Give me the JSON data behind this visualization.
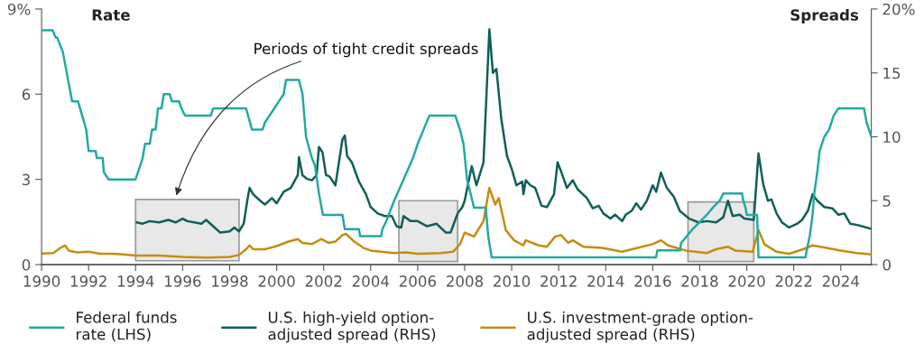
{
  "chart_data": {
    "type": "line",
    "ylabel": "Rate",
    "y2label": "Spreads",
    "xlim": [
      1990,
      2025.3
    ],
    "xticks": [
      1990,
      1992,
      1994,
      1996,
      1998,
      2000,
      2002,
      2004,
      2006,
      2008,
      2010,
      2012,
      2014,
      2016,
      2018,
      2020,
      2022,
      2024
    ],
    "ylim": [
      0,
      9
    ],
    "yticks": [
      0,
      3,
      6,
      {
        "value": 9,
        "label": "9%"
      }
    ],
    "y2lim": [
      0,
      20
    ],
    "y2ticks": [
      0,
      5,
      10,
      15,
      {
        "value": 20,
        "label": "20%"
      }
    ],
    "grid": false,
    "legend": "bottom",
    "marker": "none",
    "line_style": "solid",
    "bands": [
      {
        "axis": "x",
        "from": 1994.0,
        "to": 1998.4,
        "color": "#e8e8e8"
      },
      {
        "axis": "x",
        "from": 2005.2,
        "to": 2007.7,
        "color": "#e8e8e8"
      },
      {
        "axis": "x",
        "from": 2017.5,
        "to": 2020.3,
        "color": "#e8e8e8"
      }
    ],
    "annotations": [
      {
        "text": "Periods of tight credit spreads",
        "x": 1995.7,
        "y": 2.35
      }
    ],
    "series": [
      {
        "name": "Federal funds\nrate (LHS)",
        "color": "#22aaa1",
        "axis": "y",
        "x": [
          1990.0,
          1990.47,
          1990.6,
          1990.66,
          1990.9,
          1991.3,
          1991.55,
          1991.9,
          1992.0,
          1992.3,
          1992.35,
          1992.6,
          1992.65,
          1992.85,
          1994.0,
          1994.1,
          1994.3,
          1994.4,
          1994.6,
          1994.7,
          1994.85,
          1994.95,
          1995.1,
          1995.2,
          1995.45,
          1995.55,
          1995.85,
          1995.95,
          1996.1,
          1997.2,
          1997.3,
          1998.7,
          1998.95,
          1999.4,
          1999.5,
          1999.7,
          1999.9,
          2000.1,
          2000.3,
          2000.4,
          2000.95,
          2001.1,
          2001.15,
          2001.25,
          2001.5,
          2001.63,
          2001.8,
          2001.97,
          2002.8,
          2002.9,
          2003.5,
          2003.55,
          2004.45,
          2004.5,
          2004.65,
          2005.0,
          2005.4,
          2005.8,
          2006.0,
          2006.25,
          2006.5,
          2007.6,
          2007.7,
          2007.8,
          2007.95,
          2008.1,
          2008.4,
          2008.9,
          2009.0,
          2009.15,
          2016.14,
          2016.2,
          2017.17,
          2017.2,
          2017.45,
          2017.7,
          2018.0,
          2018.3,
          2018.55,
          2018.85,
          2019.0,
          2019.8,
          2019.85,
          2019.95,
          2020.0,
          2020.44,
          2020.5,
          2022.5,
          2022.55,
          2022.68,
          2022.8,
          2022.87,
          2023.0,
          2023.1,
          2023.3,
          2023.5,
          2023.6,
          2023.7,
          2023.9,
          2024.99,
          2025.1,
          2025.2,
          2025.3
        ],
        "values": [
          8.25,
          8.25,
          8.0,
          8.0,
          7.5,
          5.75,
          5.75,
          4.75,
          4.0,
          4.0,
          3.75,
          3.75,
          3.25,
          3.0,
          3.0,
          3.25,
          3.75,
          4.25,
          4.25,
          4.75,
          4.75,
          5.5,
          5.5,
          6.0,
          6.0,
          5.75,
          5.75,
          5.5,
          5.25,
          5.25,
          5.5,
          5.5,
          4.75,
          4.75,
          5.0,
          5.25,
          5.5,
          5.75,
          6.0,
          6.5,
          6.5,
          6.0,
          5.5,
          4.5,
          3.75,
          3.5,
          2.5,
          1.75,
          1.75,
          1.25,
          1.25,
          1.0,
          1.0,
          1.25,
          1.5,
          2.25,
          3.0,
          3.75,
          4.25,
          4.75,
          5.25,
          5.25,
          5.0,
          4.75,
          4.25,
          3.0,
          2.0,
          2.0,
          1.0,
          0.25,
          0.25,
          0.5,
          0.5,
          0.75,
          1.0,
          1.25,
          1.5,
          1.75,
          2.0,
          2.25,
          2.5,
          2.5,
          2.25,
          2.0,
          1.75,
          1.75,
          0.25,
          0.25,
          0.5,
          1.0,
          1.75,
          2.5,
          3.25,
          4.0,
          4.5,
          4.75,
          5.0,
          5.25,
          5.5,
          5.5,
          5.0,
          4.75,
          4.5
        ]
      },
      {
        "name": "U.S. high-yield option-\nadjusted spread (RHS)",
        "color": "#0f5f58",
        "axis": "y2",
        "x": [
          1994.05,
          1994.3,
          1994.6,
          1995.0,
          1995.4,
          1995.7,
          1996.0,
          1996.2,
          1996.5,
          1996.8,
          1997.0,
          1997.3,
          1997.6,
          1998.0,
          1998.2,
          1998.4,
          1998.6,
          1998.75,
          1998.85,
          1999.0,
          1999.3,
          1999.5,
          1999.8,
          2000.0,
          2000.3,
          2000.6,
          2000.9,
          2000.95,
          2001.1,
          2001.3,
          2001.5,
          2001.7,
          2001.8,
          2001.95,
          2002.1,
          2002.25,
          2002.5,
          2002.65,
          2002.8,
          2002.9,
          2003.0,
          2003.2,
          2003.5,
          2003.8,
          2004.0,
          2004.3,
          2004.6,
          2004.9,
          2005.1,
          2005.3,
          2005.4,
          2005.7,
          2006.0,
          2006.4,
          2006.8,
          2007.2,
          2007.4,
          2007.5,
          2007.7,
          2007.9,
          2008.0,
          2008.3,
          2008.5,
          2008.8,
          2009.05,
          2009.2,
          2009.35,
          2009.55,
          2009.8,
          2010.0,
          2010.2,
          2010.45,
          2010.5,
          2010.6,
          2010.8,
          2011.0,
          2011.27,
          2011.5,
          2011.8,
          2011.95,
          2012.1,
          2012.35,
          2012.6,
          2012.8,
          2013.2,
          2013.45,
          2013.7,
          2013.9,
          2014.2,
          2014.4,
          2014.7,
          2014.85,
          2015.1,
          2015.3,
          2015.5,
          2015.75,
          2016.0,
          2016.15,
          2016.35,
          2016.6,
          2016.9,
          2017.15,
          2017.55,
          2017.95,
          2018.3,
          2018.7,
          2019.0,
          2019.2,
          2019.4,
          2019.7,
          2019.9,
          2020.3,
          2020.5,
          2020.7,
          2020.9,
          2021.05,
          2021.27,
          2021.5,
          2021.8,
          2022.15,
          2022.35,
          2022.6,
          2022.8,
          2023.0,
          2023.3,
          2023.64,
          2023.9,
          2024.15,
          2024.4,
          2024.7,
          2025.1,
          2025.3
        ],
        "values": [
          3.3,
          3.2,
          3.4,
          3.3,
          3.5,
          3.3,
          3.6,
          3.4,
          3.3,
          3.2,
          3.5,
          3.0,
          2.5,
          2.6,
          2.9,
          2.6,
          3.2,
          5.0,
          6.0,
          5.5,
          5.0,
          4.7,
          5.2,
          4.8,
          5.7,
          6.0,
          7.0,
          8.4,
          7.0,
          6.7,
          6.6,
          7.0,
          9.2,
          8.8,
          7.0,
          6.9,
          6.2,
          8.0,
          9.8,
          10.1,
          8.5,
          8.0,
          6.5,
          5.5,
          4.5,
          4.0,
          3.8,
          3.8,
          3.0,
          2.9,
          3.8,
          3.4,
          3.4,
          3.0,
          3.2,
          2.5,
          2.5,
          3.0,
          4.0,
          4.5,
          5.0,
          7.7,
          6.2,
          8.0,
          18.4,
          15.0,
          15.3,
          11.5,
          8.5,
          7.5,
          6.2,
          6.5,
          5.5,
          6.6,
          6.2,
          6.0,
          4.6,
          4.5,
          5.5,
          8.0,
          7.3,
          6.0,
          6.6,
          5.9,
          5.2,
          4.4,
          4.6,
          4.0,
          3.6,
          3.9,
          3.4,
          3.9,
          4.2,
          4.8,
          4.3,
          5.0,
          6.2,
          5.7,
          7.2,
          6.0,
          5.3,
          4.2,
          3.6,
          3.3,
          3.4,
          3.3,
          3.7,
          5.0,
          3.8,
          3.9,
          3.6,
          3.5,
          8.7,
          6.3,
          5.0,
          5.1,
          4.0,
          3.3,
          2.9,
          3.2,
          3.5,
          4.2,
          5.5,
          5.0,
          4.5,
          4.4,
          3.9,
          4.0,
          3.2,
          3.1,
          2.9,
          2.8
        ]
      },
      {
        "name": "U.S. investment-grade option-\nadjusted spread (RHS)",
        "color": "#c68c10",
        "axis": "y2",
        "x": [
          1990.0,
          1990.5,
          1990.8,
          1991.0,
          1991.15,
          1991.5,
          1992.0,
          1992.5,
          1993.0,
          1993.5,
          1994.0,
          1995.0,
          1996.0,
          1997.0,
          1998.0,
          1998.4,
          1998.7,
          1998.85,
          1999.0,
          1999.5,
          2000.0,
          2000.5,
          2000.9,
          2001.1,
          2001.5,
          2001.9,
          2002.2,
          2002.5,
          2002.8,
          2002.95,
          2003.3,
          2003.7,
          2004.0,
          2005.0,
          2005.5,
          2006.0,
          2007.0,
          2007.5,
          2007.8,
          2008.0,
          2008.4,
          2008.8,
          2009.05,
          2009.3,
          2009.45,
          2009.75,
          2010.1,
          2010.5,
          2010.6,
          2011.15,
          2011.5,
          2011.85,
          2012.1,
          2012.4,
          2012.6,
          2013.05,
          2013.85,
          2014.7,
          2015.35,
          2016.0,
          2016.35,
          2016.65,
          2017.4,
          2018.3,
          2018.7,
          2019.2,
          2019.5,
          2020.25,
          2020.5,
          2020.75,
          2021.27,
          2021.8,
          2022.4,
          2022.8,
          2023.4,
          2024.0,
          2024.7,
          2025.3
        ],
        "values": [
          0.87,
          0.9,
          1.3,
          1.5,
          1.1,
          0.95,
          1.0,
          0.85,
          0.85,
          0.8,
          0.7,
          0.7,
          0.6,
          0.55,
          0.6,
          0.75,
          1.2,
          1.5,
          1.2,
          1.2,
          1.45,
          1.8,
          2.0,
          1.7,
          1.6,
          2.0,
          1.7,
          1.8,
          2.3,
          2.4,
          1.8,
          1.3,
          1.1,
          0.9,
          0.95,
          0.85,
          0.9,
          1.0,
          1.6,
          2.5,
          2.2,
          3.4,
          6.0,
          4.7,
          5.2,
          2.7,
          1.9,
          1.5,
          1.9,
          1.5,
          1.4,
          2.2,
          2.3,
          1.7,
          1.9,
          1.4,
          1.3,
          1.0,
          1.3,
          1.6,
          1.9,
          1.5,
          1.1,
          0.9,
          1.2,
          1.4,
          1.1,
          1.0,
          2.7,
          1.6,
          1.0,
          0.85,
          1.2,
          1.5,
          1.3,
          1.1,
          0.9,
          0.8
        ]
      }
    ]
  }
}
